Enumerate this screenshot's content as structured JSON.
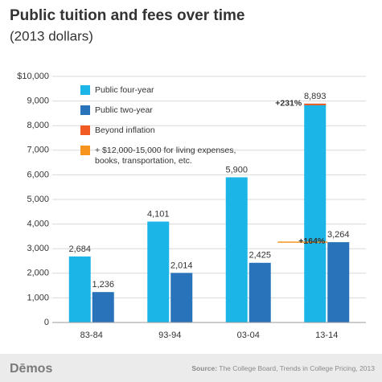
{
  "chart_data": {
    "type": "bar",
    "title": "Public tuition and fees over time",
    "subtitle": "(2013 dollars)",
    "categories": [
      "83-84",
      "93-94",
      "03-04",
      "13-14"
    ],
    "series": [
      {
        "name": "Public four-year",
        "color": "#1cb5e8",
        "values": [
          2684,
          4101,
          5900,
          8893
        ],
        "value_labels": [
          "2,684",
          "4,101",
          "5,900",
          "8,893"
        ]
      },
      {
        "name": "Public two-year",
        "color": "#2873b9",
        "values": [
          1236,
          2014,
          2425,
          3264
        ],
        "value_labels": [
          "1,236",
          "2,014",
          "2,425",
          "3,264"
        ]
      }
    ],
    "legend_extra": [
      {
        "name": [
          "Beyond inflation"
        ],
        "color": "#f15a22"
      },
      {
        "name": [
          "+ $12,000-15,000 for living expenses,",
          "books, transportation, etc."
        ],
        "color": "#f7941d"
      }
    ],
    "annotations": [
      {
        "text": "+231%",
        "series": 0,
        "index": 3,
        "color": "#f15a22"
      },
      {
        "text": "+164%",
        "series": 1,
        "index": 3,
        "color": "#f7941d"
      }
    ],
    "ylim": [
      0,
      10000
    ],
    "yticks": [
      0,
      {
        "value": 1000,
        "label": "1,000"
      },
      {
        "value": 2000,
        "label": "2,000"
      },
      {
        "value": 3000,
        "label": "3,000"
      },
      {
        "value": 4000,
        "label": "4,000"
      },
      {
        "value": 5000,
        "label": "5,000"
      },
      {
        "value": 6000,
        "label": "6,000"
      },
      {
        "value": 7000,
        "label": "7,000"
      },
      {
        "value": 8000,
        "label": "8,000"
      },
      {
        "value": 9000,
        "label": "9,000"
      },
      {
        "value": 10000,
        "label": "$10,000"
      }
    ],
    "grid": true,
    "brand": "Dēmos",
    "source_label": "Source:",
    "source": "The College Board, Trends in College Pricing, 2013"
  }
}
